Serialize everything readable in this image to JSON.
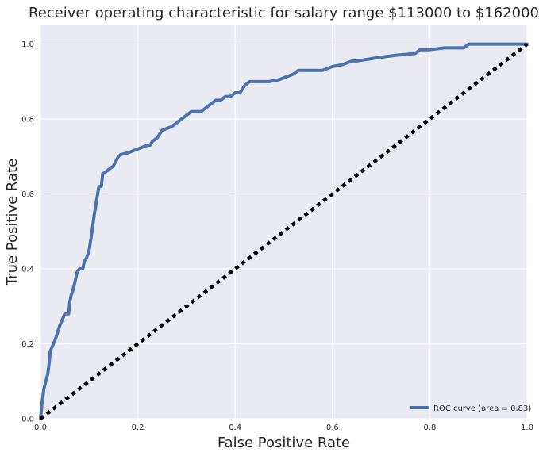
{
  "chart_data": {
    "type": "line",
    "title": "Receiver operating characteristic for salary range $113000 to $162000",
    "xlabel": "False Positive Rate",
    "ylabel": "True Positive Rate",
    "xlim": [
      0,
      1
    ],
    "ylim": [
      0,
      1.05
    ],
    "xticks": [
      "0.0",
      "0.2",
      "0.4",
      "0.6",
      "0.8",
      "1.0"
    ],
    "yticks": [
      "0.0",
      "0.2",
      "0.4",
      "0.6",
      "0.8",
      "1.0"
    ],
    "grid": true,
    "legend_position": "bottom-right",
    "colors": {
      "plot_bg": "#eaeaf2",
      "grid": "#ffffff",
      "roc": "#4c72b0",
      "diagonal": "#000000"
    },
    "series": [
      {
        "name": "ROC curve (area = 0.83)",
        "style": "solid",
        "x": [
          0.0,
          0.003,
          0.007,
          0.015,
          0.018,
          0.02,
          0.03,
          0.04,
          0.05,
          0.058,
          0.06,
          0.063,
          0.066,
          0.07,
          0.075,
          0.08,
          0.087,
          0.09,
          0.095,
          0.1,
          0.106,
          0.11,
          0.115,
          0.12,
          0.125,
          0.128,
          0.13,
          0.14,
          0.15,
          0.16,
          0.165,
          0.18,
          0.2,
          0.22,
          0.225,
          0.23,
          0.24,
          0.25,
          0.27,
          0.28,
          0.3,
          0.31,
          0.33,
          0.34,
          0.35,
          0.36,
          0.37,
          0.38,
          0.39,
          0.4,
          0.41,
          0.42,
          0.43,
          0.44,
          0.45,
          0.47,
          0.49,
          0.5,
          0.52,
          0.53,
          0.55,
          0.58,
          0.59,
          0.6,
          0.62,
          0.63,
          0.64,
          0.65,
          0.7,
          0.73,
          0.77,
          0.78,
          0.8,
          0.83,
          0.87,
          0.88,
          0.9,
          0.95,
          1.0
        ],
        "y": [
          0.0,
          0.04,
          0.08,
          0.12,
          0.15,
          0.18,
          0.21,
          0.25,
          0.28,
          0.28,
          0.31,
          0.33,
          0.34,
          0.36,
          0.39,
          0.4,
          0.4,
          0.42,
          0.43,
          0.45,
          0.5,
          0.54,
          0.58,
          0.62,
          0.62,
          0.655,
          0.655,
          0.665,
          0.675,
          0.7,
          0.705,
          0.71,
          0.72,
          0.73,
          0.73,
          0.74,
          0.75,
          0.77,
          0.78,
          0.79,
          0.81,
          0.82,
          0.82,
          0.83,
          0.84,
          0.85,
          0.85,
          0.86,
          0.86,
          0.87,
          0.87,
          0.89,
          0.9,
          0.9,
          0.9,
          0.9,
          0.905,
          0.91,
          0.92,
          0.93,
          0.93,
          0.93,
          0.935,
          0.94,
          0.945,
          0.95,
          0.955,
          0.955,
          0.965,
          0.97,
          0.975,
          0.985,
          0.985,
          0.99,
          0.99,
          1.0,
          1.0,
          1.0,
          1.0
        ]
      },
      {
        "name": "",
        "style": "dashed",
        "x": [
          0,
          1
        ],
        "y": [
          0,
          1
        ]
      }
    ]
  }
}
